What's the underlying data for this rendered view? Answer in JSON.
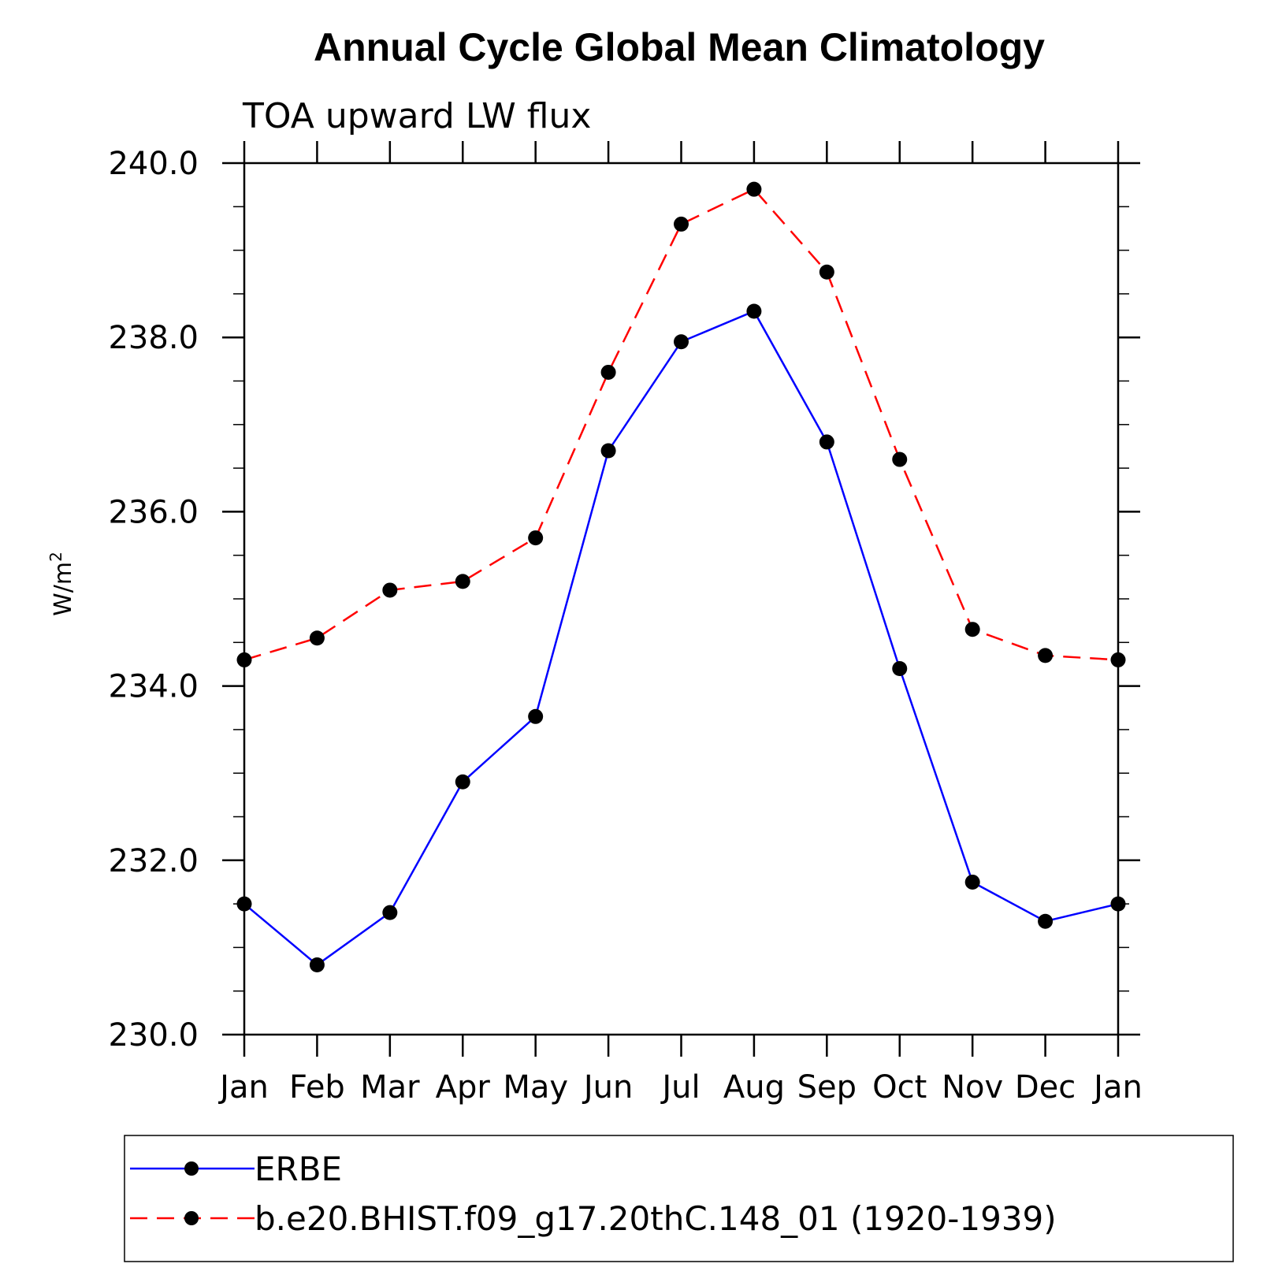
{
  "chart_data": {
    "type": "line",
    "title": "Annual Cycle Global Mean Climatology",
    "subtitle": "TOA upward LW flux",
    "ylabel": "W/m",
    "ylabel_sup": "2",
    "xlabel": "",
    "categories": [
      "Jan",
      "Feb",
      "Mar",
      "Apr",
      "May",
      "Jun",
      "Jul",
      "Aug",
      "Sep",
      "Oct",
      "Nov",
      "Dec",
      "Jan"
    ],
    "ylim": [
      230,
      240
    ],
    "yticks": [
      "230.0",
      "232.0",
      "234.0",
      "236.0",
      "238.0",
      "240.0"
    ],
    "legend_position": "bottom",
    "series": [
      {
        "name": "ERBE",
        "color": "#0000ff",
        "dash": "solid",
        "marker": "filled-circle",
        "values": [
          231.5,
          230.8,
          231.4,
          232.9,
          233.65,
          236.7,
          237.95,
          238.3,
          236.8,
          234.2,
          231.75,
          231.3,
          231.5
        ]
      },
      {
        "name": "b.e20.BHIST.f09_g17.20thC.148_01 (1920-1939)",
        "color": "#ff0000",
        "dash": "dashed",
        "marker": "filled-circle",
        "values": [
          234.3,
          234.55,
          235.1,
          235.2,
          235.7,
          237.6,
          239.3,
          239.7,
          238.75,
          236.6,
          234.65,
          234.35,
          234.3
        ]
      }
    ]
  }
}
